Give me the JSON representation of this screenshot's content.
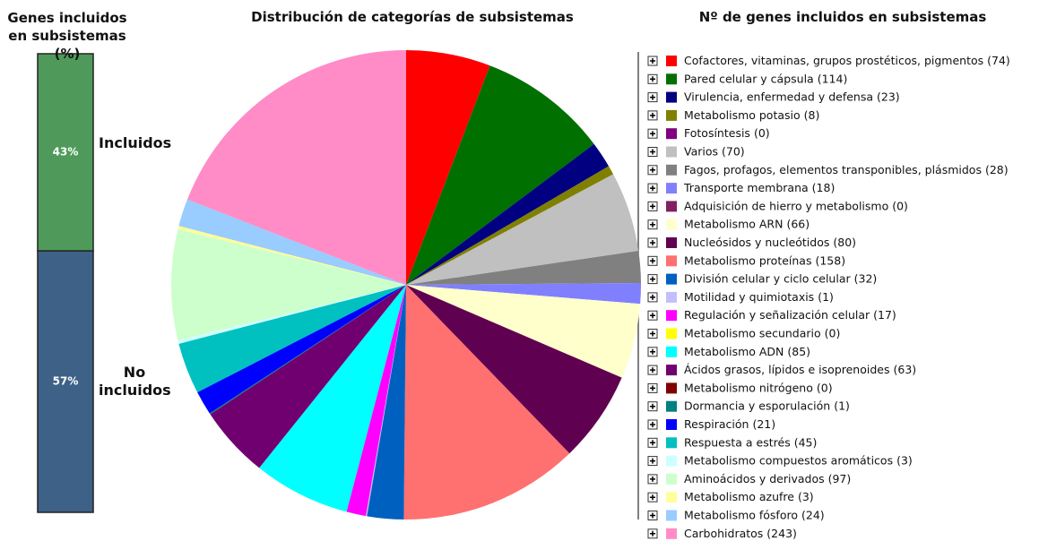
{
  "chart_data": [
    {
      "type": "stacked_bar",
      "title": "Genes incluidos en subsistemas (%)",
      "ylim": [
        0,
        100
      ],
      "series": [
        {
          "name": "Incluidos",
          "color": "#4f9a5a",
          "values": [
            43
          ],
          "value_labels": [
            "43%"
          ]
        },
        {
          "name": "No incluidos",
          "color": "#3e6187",
          "values": [
            57
          ],
          "value_labels": [
            "57%"
          ]
        }
      ]
    },
    {
      "type": "pie",
      "title": "Distribución de categorías de subsistemas",
      "legend_title": "Nº de genes incluidos en subsistemas",
      "categories": [
        "Cofactores, vitaminas, grupos prostéticos, pigmentos",
        "Pared celular y cápsula",
        "Virulencia, enfermedad y defensa",
        "Metabolismo potasio",
        "Fotosíntesis",
        "Varios",
        "Fagos, profagos, elementos transponibles, plásmidos",
        "Transporte membrana",
        "Adquisición de hierro y metabolismo",
        "Metabolismo ARN",
        "Nucleósidos y nucleótidos",
        "Metabolismo proteínas",
        "División celular y ciclo celular",
        "Motilidad y quimiotaxis",
        "Regulación y señalización celular",
        "Metabolismo secundario",
        "Metabolismo ADN",
        "Ácidos grasos, lípidos e isoprenoides",
        "Metabolismo nitrógeno",
        "Dormancia y esporulación",
        "Respiración",
        "Respuesta a estrés",
        "Metabolismo compuestos aromáticos",
        "Aminoácidos y derivados",
        "Metabolismo azufre",
        "Metabolismo fósforo",
        "Carbohidratos"
      ],
      "values": [
        74,
        114,
        23,
        8,
        0,
        70,
        28,
        18,
        0,
        66,
        80,
        158,
        32,
        1,
        17,
        0,
        85,
        63,
        0,
        1,
        21,
        45,
        3,
        97,
        3,
        24,
        243
      ],
      "value_labels": [
        "(74)",
        "(114)",
        "(23)",
        "(8)",
        "(0)",
        "(70)",
        "(28)",
        "(18)",
        "(0)",
        "(66)",
        "(80)",
        "(158)",
        "(32)",
        "(1)",
        "(17)",
        "(0)",
        "(85)",
        "(63)",
        "(0)",
        "(1)",
        "(21)",
        "(45)",
        "(3)",
        "(97)",
        "(3)",
        "(24)",
        "(243)"
      ],
      "colors": [
        "#ff0000",
        "#007000",
        "#000080",
        "#808000",
        "#800080",
        "#c0c0c0",
        "#808080",
        "#8080ff",
        "#802060",
        "#ffffcc",
        "#600050",
        "#ff7070",
        "#0060c0",
        "#c0c0ff",
        "#ff00ff",
        "#ffff00",
        "#00ffff",
        "#700070",
        "#800000",
        "#008080",
        "#0000ff",
        "#00c0c0",
        "#ccffff",
        "#ccffcc",
        "#ffff99",
        "#99ccff",
        "#ff8cc6"
      ]
    }
  ]
}
